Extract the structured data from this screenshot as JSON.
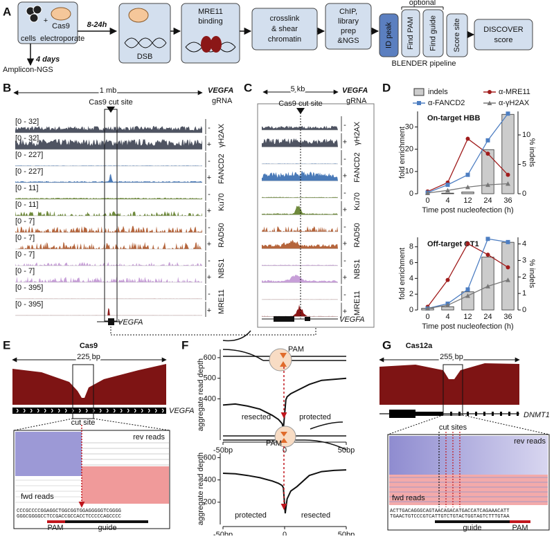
{
  "panel_labels": [
    "A",
    "B",
    "C",
    "D",
    "E",
    "F",
    "G"
  ],
  "A": {
    "cells": "cells",
    "electroporate": "electroporate",
    "cas9": "Cas9",
    "plus": "+",
    "time1": "8-24h",
    "time2": "4 days",
    "amplicon": "Amplicon-NGS",
    "dsb": "DSB",
    "mre11": [
      "MRE11",
      "binding"
    ],
    "crosslink": [
      "crosslink",
      "& shear",
      "chromatin"
    ],
    "chip": [
      "ChIP,",
      "library",
      "prep",
      "&NGS"
    ],
    "blender": [
      "ID peak",
      "Find PAM",
      "Find guide",
      "Score site"
    ],
    "optional": "optional",
    "pipeline": "BLENDER pipeline",
    "discover": [
      "DISCOVER",
      "score"
    ]
  },
  "B": {
    "scale": "1 mb",
    "gene": "VEGFA",
    "grna": "gRNA",
    "cut": "Cas9 cut site",
    "tracks": [
      {
        "range": "[0 - 32]",
        "strand": "-"
      },
      {
        "range": "[0 - 32]",
        "strand": "+"
      },
      {
        "range": "[0 - 227]",
        "strand": "-"
      },
      {
        "range": "[0 - 227]",
        "strand": "+"
      },
      {
        "range": "[0 - 11]",
        "strand": "-"
      },
      {
        "range": "[0 - 11]",
        "strand": "+"
      },
      {
        "range": "[0 - 7]",
        "strand": "-"
      },
      {
        "range": "[0 - 7]",
        "strand": "+"
      },
      {
        "range": "[0 - 7]",
        "strand": "-"
      },
      {
        "range": "[0 - 7]",
        "strand": "+"
      },
      {
        "range": "[0 - 395]",
        "strand": "-"
      },
      {
        "range": "[0 - 395]",
        "strand": "+"
      }
    ],
    "factors": [
      "γH2AX",
      "FANCD2",
      "Ku70",
      "RAD50",
      "NBS1",
      "MRE11"
    ],
    "colors": [
      "#4f5462",
      "#4a7ab8",
      "#6f8a3c",
      "#b5653c",
      "#c79fd8",
      "#8b1717"
    ]
  },
  "C": {
    "scale": "5 kb",
    "gene": "VEGFA",
    "grna": "gRNA",
    "cut": "Cas9 cut site",
    "strands": [
      "-",
      "+",
      "-",
      "+",
      "-",
      "+",
      "-",
      "+",
      "-",
      "+",
      "-",
      "+"
    ],
    "factors": [
      "γH2AX",
      "FANCD2",
      "Ku70",
      "RAD50",
      "NBS1",
      "MRE11"
    ]
  },
  "chart_data": [
    {
      "type": "combo",
      "title": "On-target HBB",
      "categories": [
        "0",
        "4",
        "12",
        "24",
        "36"
      ],
      "xlabel": "Time post nucleofection (h)",
      "ylabel": "fold enrichment",
      "y2label": "% indels",
      "ylim": [
        0,
        37
      ],
      "yticks": [
        0,
        10,
        20,
        30
      ],
      "y2lim": [
        0,
        14
      ],
      "y2ticks": [
        0,
        5,
        10
      ],
      "series": [
        {
          "name": "indels",
          "type": "bar",
          "axis": "y2",
          "color": "#cccccc",
          "values": [
            0,
            0.1,
            0.3,
            7.5,
            13.5
          ]
        },
        {
          "name": "α-MRE11",
          "type": "line",
          "marker": "circle",
          "color": "#a01c1c",
          "values": [
            1,
            5,
            24.7,
            18,
            8.5
          ]
        },
        {
          "name": "α-FANCD2",
          "type": "line",
          "marker": "square",
          "color": "#4d7ec2",
          "values": [
            0.5,
            4,
            8.5,
            24,
            36
          ]
        },
        {
          "name": "α-γH2AX",
          "type": "line",
          "marker": "triangle",
          "color": "#777777",
          "values": [
            0.3,
            1.5,
            3,
            4,
            4.5
          ]
        }
      ]
    },
    {
      "type": "combo",
      "title": "Off-target OT1",
      "categories": [
        "0",
        "4",
        "12",
        "24",
        "36"
      ],
      "xlabel": "Time post nucleofection (h)",
      "ylabel": "fold enrichment",
      "y2label": "% indels",
      "ylim": [
        0,
        9.2
      ],
      "yticks": [
        0,
        2,
        4,
        6,
        8
      ],
      "y2lim": [
        0,
        4.4
      ],
      "y2ticks": [
        0,
        1,
        2,
        3,
        4
      ],
      "series": [
        {
          "type": "bar",
          "axis": "y2",
          "color": "#cccccc",
          "values": [
            0.1,
            0.2,
            1.1,
            3.2,
            4.1
          ]
        },
        {
          "type": "line",
          "marker": "circle",
          "color": "#a01c1c",
          "values": [
            0.4,
            3.8,
            8.4,
            7,
            5.4
          ]
        },
        {
          "type": "line",
          "marker": "square",
          "color": "#4d7ec2",
          "values": [
            0.2,
            0.8,
            2.6,
            9,
            8.6
          ]
        },
        {
          "type": "line",
          "marker": "triangle",
          "color": "#777777",
          "values": [
            0.2,
            0.6,
            1.8,
            3,
            3.8
          ]
        }
      ]
    },
    {
      "type": "line",
      "ylabel": "aggregate read depth",
      "color": "#111111",
      "x": [
        -50,
        -40,
        -30,
        -20,
        -10,
        -5,
        -2,
        -1,
        1,
        2,
        5,
        10,
        20,
        30,
        40,
        50
      ],
      "values": [
        370,
        375,
        365,
        350,
        320,
        300,
        280,
        255,
        395,
        410,
        425,
        440,
        470,
        490,
        495,
        500
      ],
      "xlim": [
        -50,
        50
      ],
      "xticks": [
        {
          "value": -50,
          "label": "-50bp"
        },
        0,
        {
          "value": 50,
          "label": "50bp"
        }
      ],
      "ylim": [
        200,
        640
      ],
      "yticks": [
        400,
        500,
        600
      ],
      "annotations": [
        "resected",
        "protected"
      ],
      "diagram_label": "PAM"
    },
    {
      "type": "line",
      "ylabel": "aggregate read depth",
      "color": "#111111",
      "x": [
        -50,
        -40,
        -30,
        -20,
        -10,
        -5,
        -2,
        -1,
        0.5,
        2,
        5,
        10,
        20,
        30,
        40,
        50
      ],
      "values": [
        460,
        455,
        440,
        420,
        390,
        370,
        350,
        330,
        100,
        230,
        300,
        340,
        440,
        475,
        485,
        490
      ],
      "xlim": [
        -50,
        50
      ],
      "xticks": [
        {
          "value": -50,
          "label": "-50bp"
        },
        0,
        {
          "value": 50,
          "label": "50bp"
        }
      ],
      "ylim": [
        0,
        640
      ],
      "yticks": [
        200,
        400,
        600
      ],
      "annotations": [
        "protected",
        "resected"
      ],
      "diagram_label": "PAM"
    }
  ],
  "E": {
    "title": "Cas9",
    "scale": "225 bp",
    "gene": "VEGFA",
    "cut": "cut site",
    "rev": "rev reads",
    "fwd": "fwd reads",
    "seq": [
      "CCCGCCCCGGAGGCTGGCGGTGGAGGGGGTCGGGG",
      "GGGCGGGGCCTCCGACCGCCACCTCCCCCAGCCCC"
    ],
    "pam": "PAM",
    "guide": "guide"
  },
  "G": {
    "title": "Cas12a",
    "scale": "255 bp",
    "gene": "DNMT1",
    "cut": "cut sites",
    "rev": "rev reads",
    "fwd": "fwd reads",
    "seq": [
      "ACTTGACAGGGCAGTAACAGACATGACCATCAGAAACATT",
      "TGAACTGTCCCGTCATTGTCTGTACTGGTAGTCTTTGTAA"
    ],
    "pam": "PAM",
    "guide": "guide"
  }
}
